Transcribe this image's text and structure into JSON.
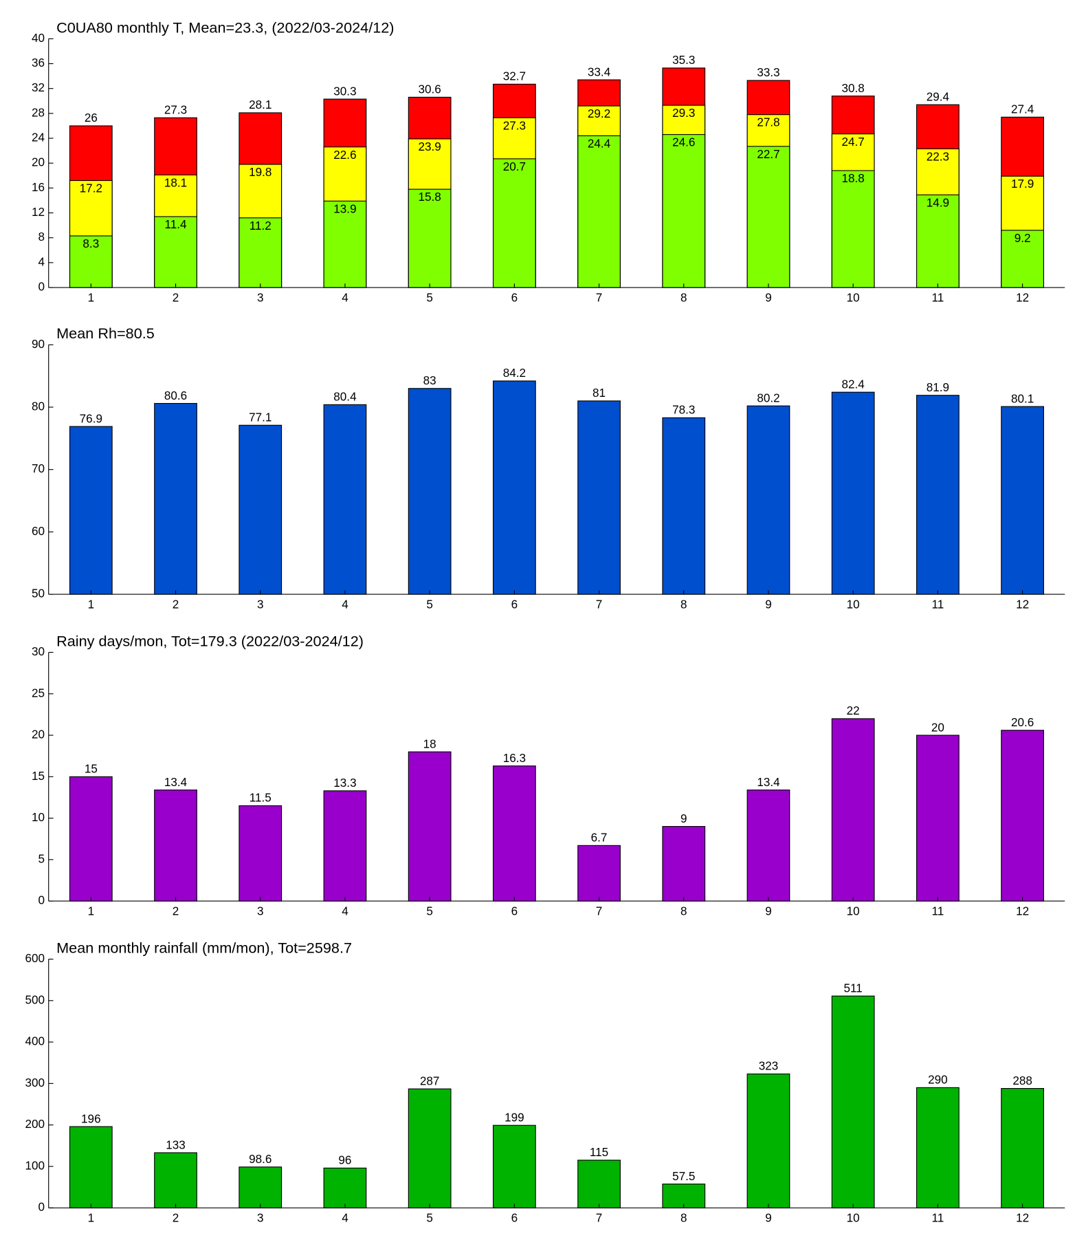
{
  "chart_data": [
    {
      "type": "bar",
      "title": "C0UA80 monthly T, Mean=23.3, (2022/03-2024/12)",
      "categories": [
        1,
        2,
        3,
        4,
        5,
        6,
        7,
        8,
        9,
        10,
        11,
        12
      ],
      "series": [
        {
          "color": "#ff0000",
          "values": [
            26,
            27.3,
            28.1,
            30.3,
            30.6,
            32.7,
            33.4,
            35.3,
            33.3,
            30.8,
            29.4,
            27.4
          ]
        },
        {
          "color": "#ffff00",
          "values": [
            17.2,
            18.1,
            19.8,
            22.6,
            23.9,
            27.3,
            29.2,
            29.3,
            27.8,
            24.7,
            22.3,
            17.9
          ]
        },
        {
          "color": "#80ff00",
          "values": [
            8.3,
            11.4,
            11.2,
            13.9,
            15.8,
            20.7,
            24.4,
            24.6,
            22.7,
            18.8,
            14.9,
            9.2
          ]
        }
      ],
      "ylim": [
        0,
        40
      ],
      "yticks": [
        0,
        4,
        8,
        12,
        16,
        20,
        24,
        28,
        32,
        36,
        40
      ]
    },
    {
      "type": "bar",
      "title": "Mean Rh=80.5",
      "categories": [
        1,
        2,
        3,
        4,
        5,
        6,
        7,
        8,
        9,
        10,
        11,
        12
      ],
      "series": [
        {
          "color": "#004fcf",
          "values": [
            76.9,
            80.6,
            77.1,
            80.4,
            83,
            84.2,
            81,
            78.3,
            80.2,
            82.4,
            81.9,
            80.1
          ]
        }
      ],
      "ylim": [
        50,
        90
      ],
      "yticks": [
        50,
        60,
        70,
        80,
        90
      ]
    },
    {
      "type": "bar",
      "title": "Rainy days/mon, Tot=179.3 (2022/03-2024/12)",
      "categories": [
        1,
        2,
        3,
        4,
        5,
        6,
        7,
        8,
        9,
        10,
        11,
        12
      ],
      "series": [
        {
          "color": "#9900cc",
          "values": [
            15,
            13.4,
            11.5,
            13.3,
            18,
            16.3,
            6.7,
            9,
            13.4,
            22,
            20,
            20.6
          ]
        }
      ],
      "ylim": [
        0,
        30
      ],
      "yticks": [
        0,
        5,
        10,
        15,
        20,
        25,
        30
      ]
    },
    {
      "type": "bar",
      "title": "Mean monthly rainfall (mm/mon), Tot=2598.7",
      "categories": [
        1,
        2,
        3,
        4,
        5,
        6,
        7,
        8,
        9,
        10,
        11,
        12
      ],
      "series": [
        {
          "color": "#00b300",
          "values": [
            196,
            133,
            98.6,
            96,
            287,
            199,
            115,
            57.5,
            323,
            511,
            290,
            288
          ]
        }
      ],
      "ylim": [
        0,
        600
      ],
      "yticks": [
        0,
        100,
        200,
        300,
        400,
        500,
        600
      ]
    }
  ]
}
